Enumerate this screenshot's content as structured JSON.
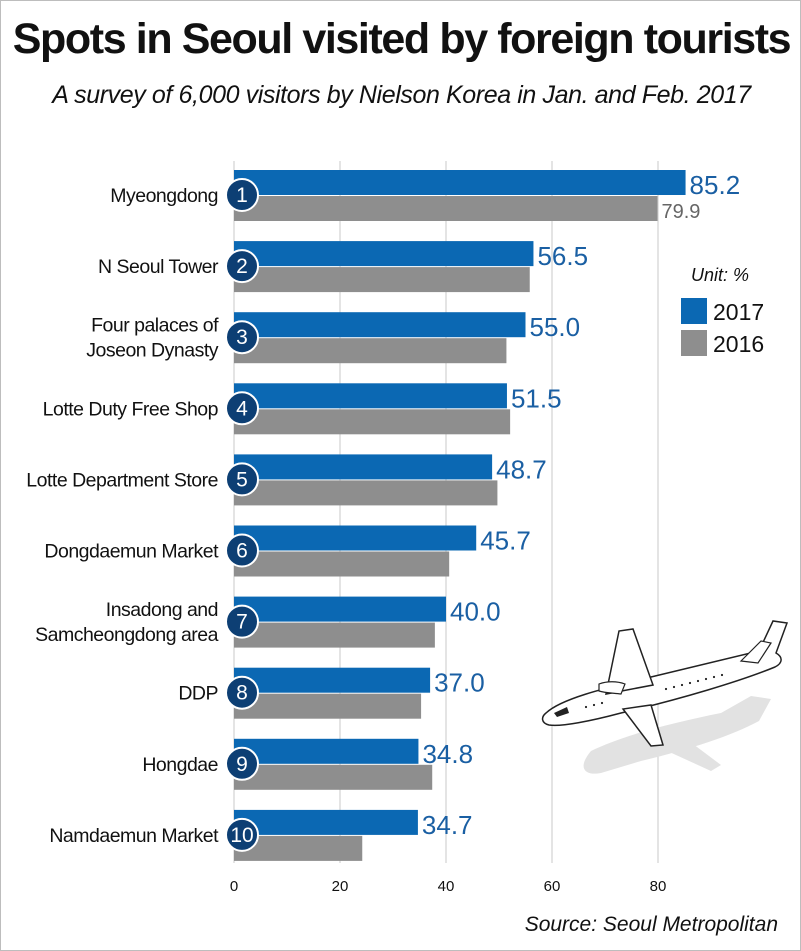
{
  "chart_data": {
    "type": "bar",
    "orientation": "horizontal",
    "title": "Spots in Seoul visited by foreign tourists",
    "subtitle": "A survey of 6,000 visitors by Nielson Korea in Jan. and Feb. 2017",
    "unit": "Unit: %",
    "source": "Source: Seoul Metropolitan",
    "categories": [
      {
        "rank": "1",
        "lines": [
          "Myeongdong"
        ]
      },
      {
        "rank": "2",
        "lines": [
          "N Seoul Tower"
        ]
      },
      {
        "rank": "3",
        "lines": [
          "Four palaces of",
          "Joseon Dynasty"
        ]
      },
      {
        "rank": "4",
        "lines": [
          "Lotte Duty Free Shop"
        ]
      },
      {
        "rank": "5",
        "lines": [
          "Lotte Department Store"
        ]
      },
      {
        "rank": "6",
        "lines": [
          "Dongdaemun Market"
        ]
      },
      {
        "rank": "7",
        "lines": [
          "Insadong and",
          "Samcheongdong area"
        ]
      },
      {
        "rank": "8",
        "lines": [
          "DDP"
        ]
      },
      {
        "rank": "9",
        "lines": [
          "Hongdae"
        ]
      },
      {
        "rank": "10",
        "lines": [
          "Namdaemun Market"
        ]
      }
    ],
    "series": [
      {
        "name": "2017",
        "color": "#0b68b3",
        "values": [
          85.2,
          56.5,
          55.0,
          51.5,
          48.7,
          45.7,
          40.0,
          37.0,
          34.8,
          34.7
        ],
        "labels": [
          "85.2",
          "56.5",
          "55.0",
          "51.5",
          "48.7",
          "45.7",
          "40.0",
          "37.0",
          "34.8",
          "34.7"
        ]
      },
      {
        "name": "2016",
        "color": "#8e8e8e",
        "values": [
          79.9,
          55.8,
          51.4,
          52.1,
          49.7,
          40.6,
          37.9,
          35.3,
          37.4,
          24.2
        ],
        "labels": [
          "79.9",
          "",
          "",
          "",
          "",
          "",
          "",
          "",
          "",
          ""
        ]
      }
    ],
    "xlim": [
      0,
      90
    ],
    "xticks": [
      0,
      20,
      40,
      60,
      80
    ],
    "grid": true,
    "legend_position": "right"
  }
}
